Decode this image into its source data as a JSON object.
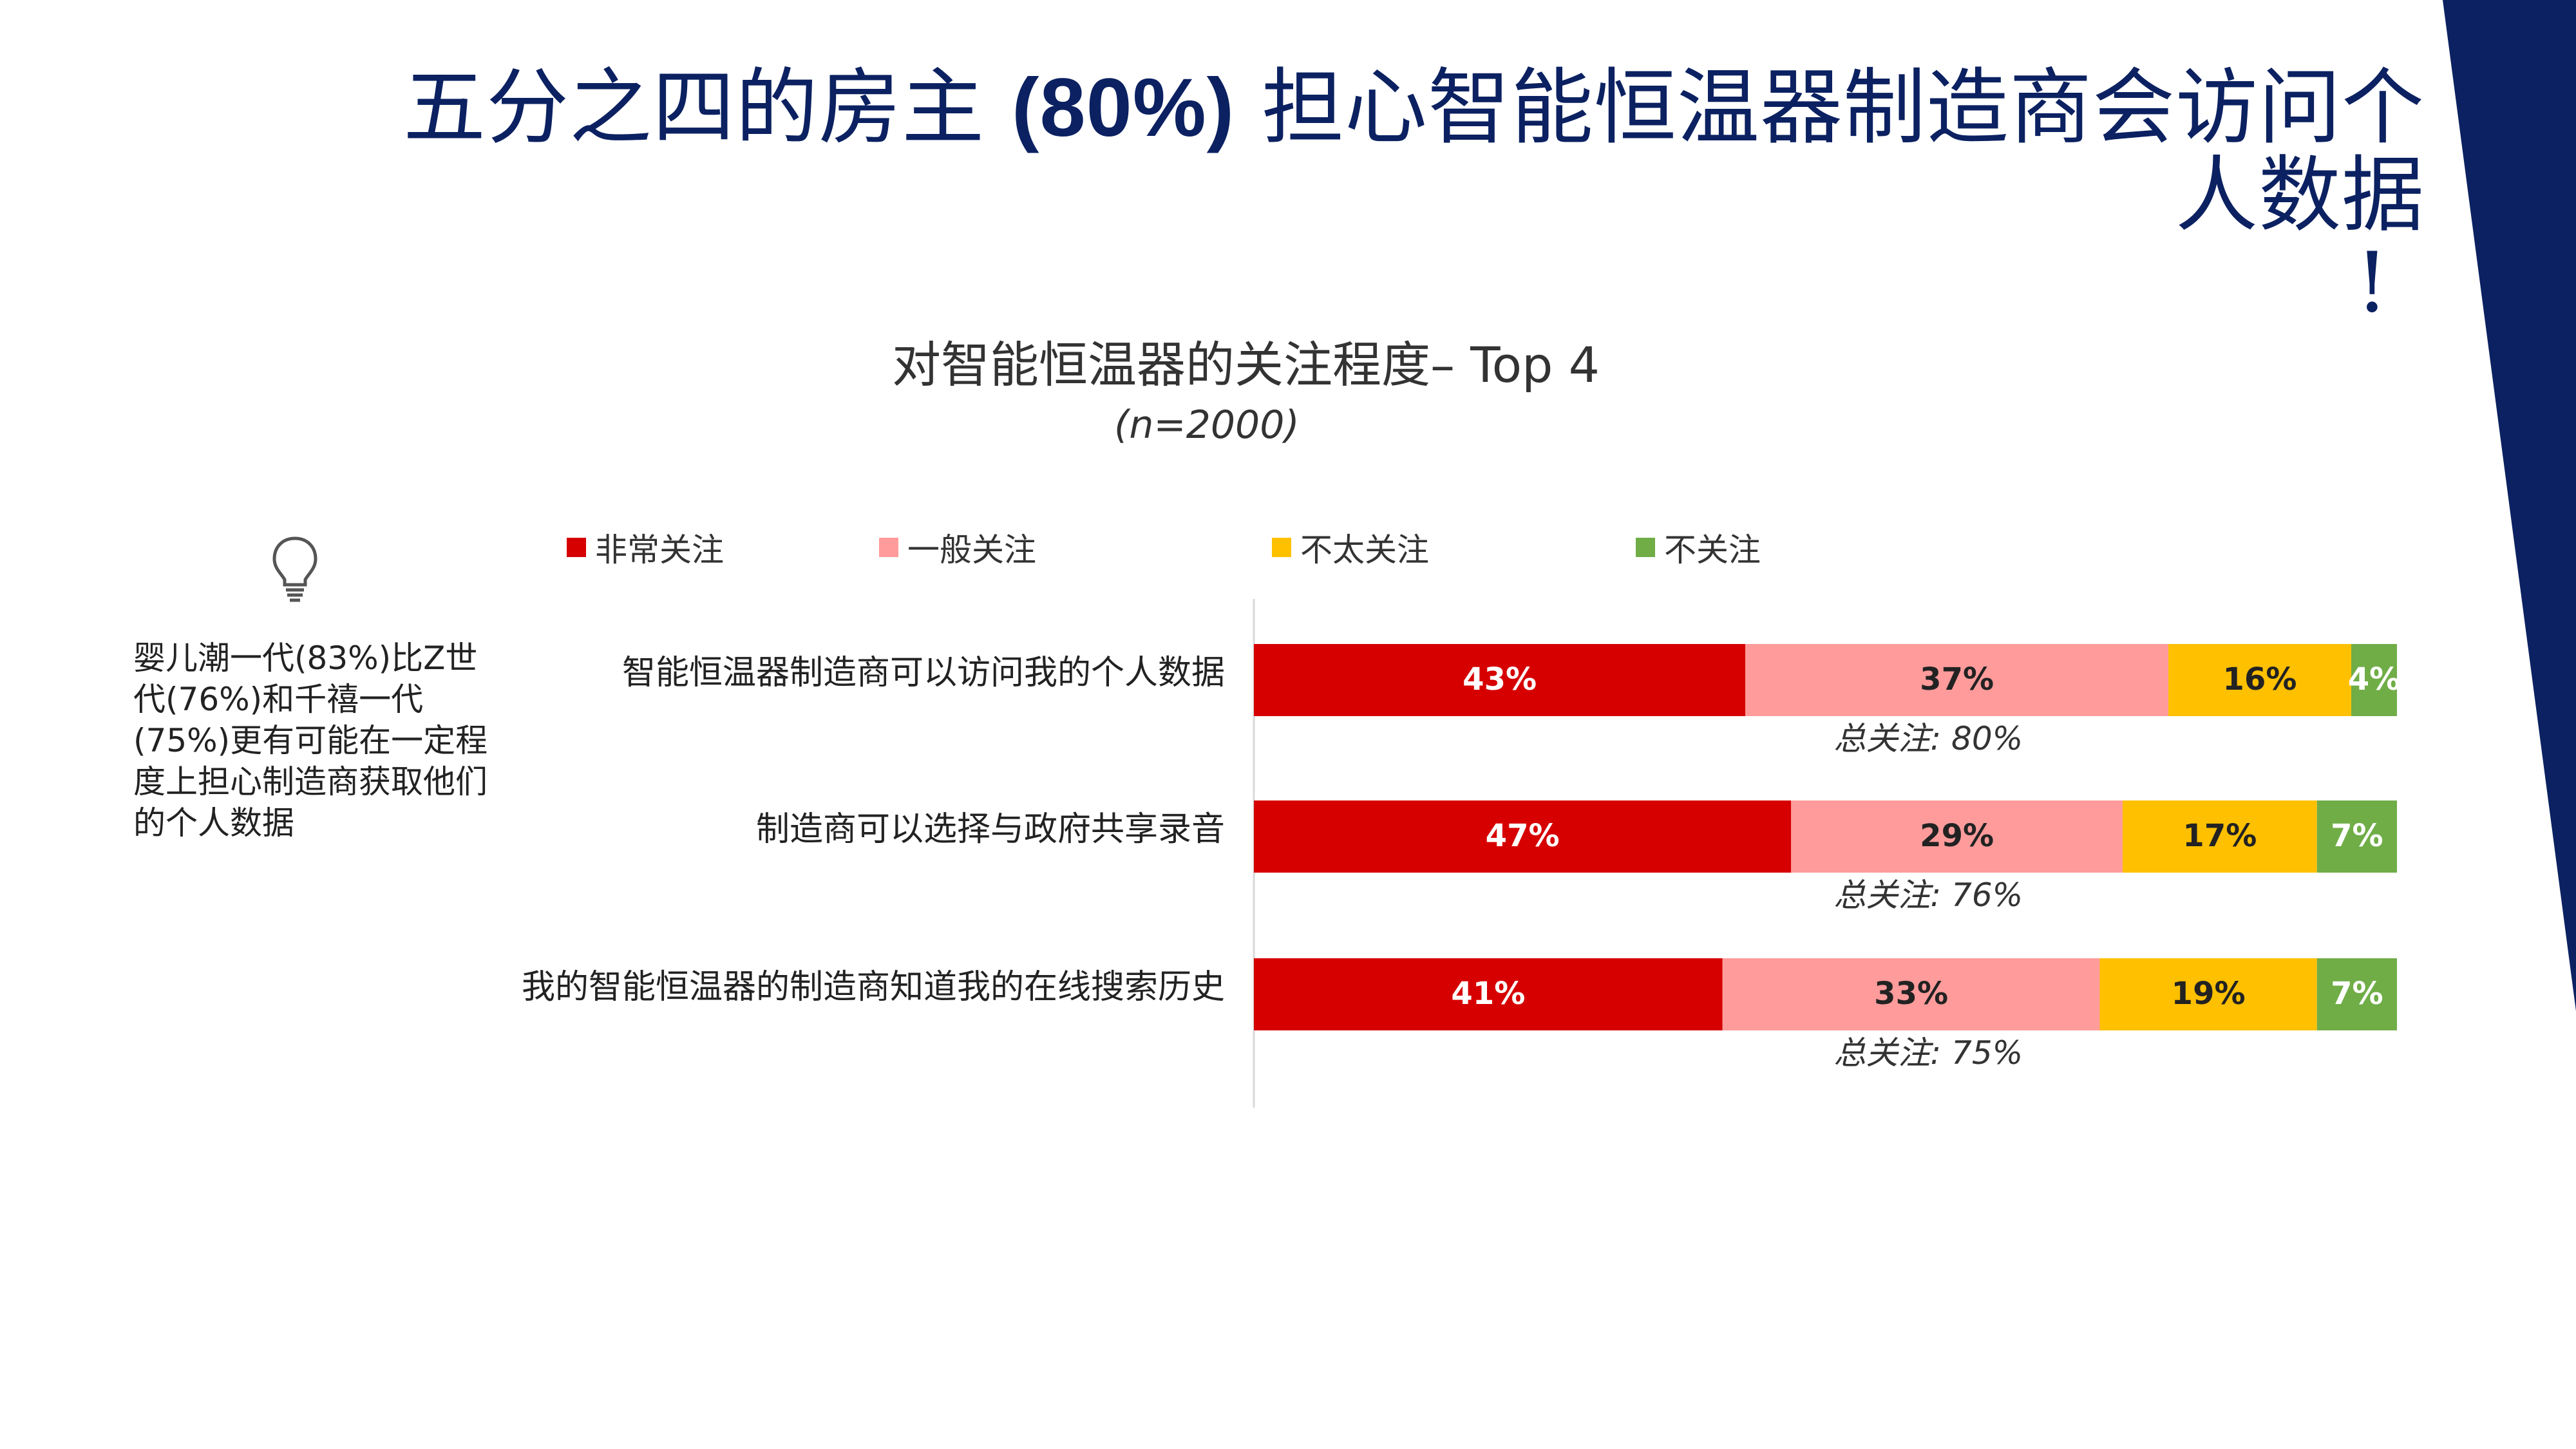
{
  "title": {
    "part1": "五分之四的房主 ",
    "part_bold": "(80%)",
    "part2": " 担心智能恒温器制造商会访问个",
    "line2": "人数据",
    "line3": "!"
  },
  "side_note": {
    "icon": "lightbulb-icon",
    "text": "婴儿潮一代(83%)比Z世代(76%)和千禧一代(75%)更有可能在一定程度上担心制造商获取他们的个人数据"
  },
  "colors": {
    "title": "#0b2161",
    "navy_band": "#0b2161",
    "very": "#d60000",
    "general": "#ff9b9b",
    "not_very": "#ffc000",
    "not": "#70ad47"
  },
  "chart_data": {
    "type": "bar",
    "orientation": "horizontal",
    "stacked": true,
    "title": "对智能恒温器的关注程度– Top 4",
    "subtitle": "(n=2000)",
    "legend_position": "top",
    "categories": [
      "智能恒温器制造商可以访问我的个人数据",
      "制造商可以选择与政府共享录音",
      "我的智能恒温器的制造商知道我的在线搜索历史"
    ],
    "series": [
      {
        "name": "非常关注",
        "color": "#d60000",
        "values": [
          43,
          47,
          41
        ],
        "labels": [
          "43%",
          "47%",
          "41%"
        ],
        "label_color": "#ffffff"
      },
      {
        "name": "一般关注",
        "color": "#ff9b9b",
        "values": [
          37,
          29,
          33
        ],
        "labels": [
          "37%",
          "29%",
          "33%"
        ],
        "label_color": "#222222"
      },
      {
        "name": "不太关注",
        "color": "#ffc000",
        "values": [
          16,
          17,
          19
        ],
        "labels": [
          "16%",
          "17%",
          "19%"
        ],
        "label_color": "#222222"
      },
      {
        "name": "不关注",
        "color": "#70ad47",
        "values": [
          4,
          7,
          7
        ],
        "labels": [
          "4%",
          "7%",
          "7%"
        ],
        "label_color": "#ffffff"
      }
    ],
    "totals": [
      "总关注: 80%",
      "总关注: 76%",
      "总关注: 75%"
    ],
    "xlim": [
      0,
      100
    ]
  }
}
